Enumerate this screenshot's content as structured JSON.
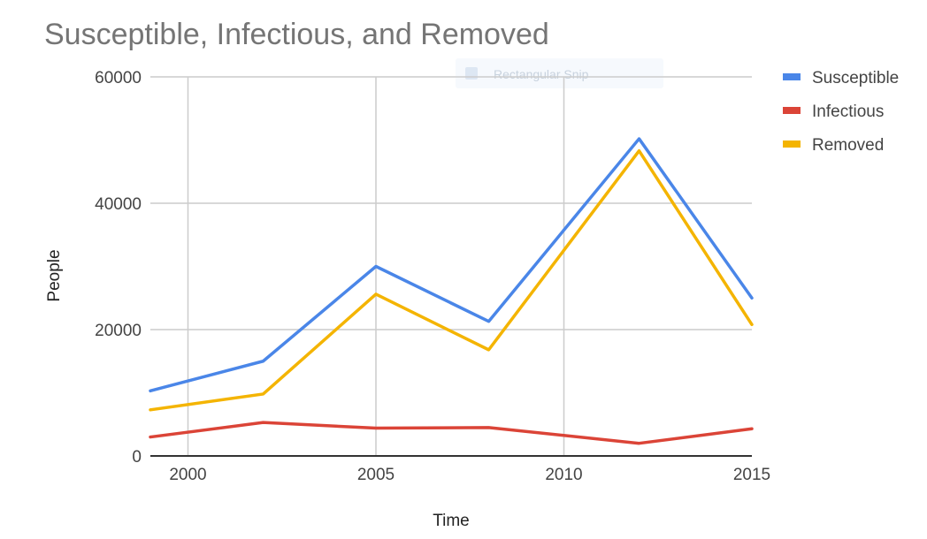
{
  "chart_data": {
    "type": "line",
    "title": "Susceptible, Infectious, and Removed",
    "xlabel": "Time",
    "ylabel": "People",
    "x_ticks": [
      "2000",
      "2005",
      "2010",
      "2015"
    ],
    "y_ticks": [
      "0",
      "20000",
      "40000",
      "60000"
    ],
    "xlim": [
      1999,
      2015
    ],
    "ylim": [
      0,
      60000
    ],
    "grid": true,
    "legend_position": "right",
    "x": [
      1999,
      2002,
      2005,
      2008,
      2012,
      2015
    ],
    "series": [
      {
        "name": "Susceptible",
        "color": "#4a86e8",
        "values": [
          10300,
          15000,
          30000,
          21300,
          50200,
          25000
        ]
      },
      {
        "name": "Infectious",
        "color": "#db4437",
        "values": [
          3000,
          5300,
          4400,
          4500,
          2000,
          4300
        ]
      },
      {
        "name": "Removed",
        "color": "#f4b400",
        "values": [
          7300,
          9800,
          25600,
          16800,
          48300,
          20800
        ]
      }
    ]
  },
  "overlay": {
    "label": "Rectangular Snip"
  }
}
